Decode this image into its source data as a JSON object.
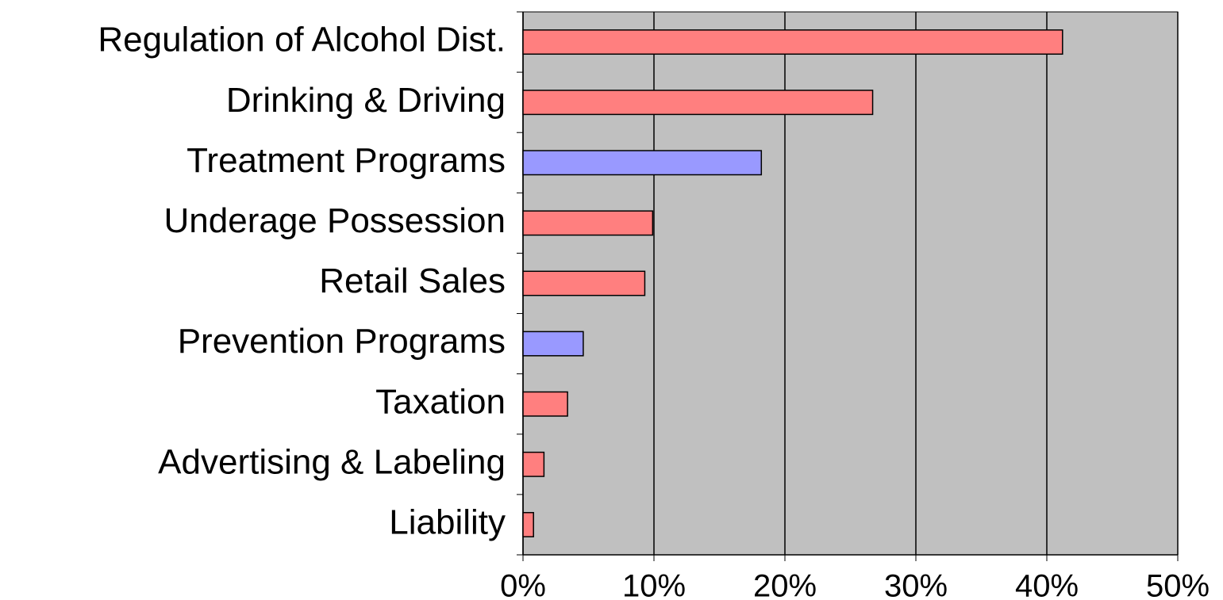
{
  "chart_data": {
    "type": "bar",
    "orientation": "horizontal",
    "categories": [
      "Regulation of Alcohol Dist.",
      "Drinking & Driving",
      "Treatment Programs",
      "Underage Possession",
      "Retail Sales",
      "Prevention Programs",
      "Taxation",
      "Advertising & Labeling",
      "Liability"
    ],
    "values": [
      41.2,
      26.7,
      18.2,
      9.9,
      9.3,
      4.6,
      3.4,
      1.6,
      0.8
    ],
    "colors": [
      "#ff7f7f",
      "#ff7f7f",
      "#9999ff",
      "#ff7f7f",
      "#ff7f7f",
      "#9999ff",
      "#ff7f7f",
      "#ff7f7f",
      "#ff7f7f"
    ],
    "xlim": [
      0,
      50
    ],
    "xticks": [
      {
        "value": 0,
        "label": "0%"
      },
      {
        "value": 10,
        "label": "10%"
      },
      {
        "value": 20,
        "label": "20%"
      },
      {
        "value": 30,
        "label": "30%"
      },
      {
        "value": 40,
        "label": "40%"
      },
      {
        "value": 50,
        "label": "50%"
      }
    ],
    "grid": true,
    "plot_background": "#c0c0c0"
  }
}
